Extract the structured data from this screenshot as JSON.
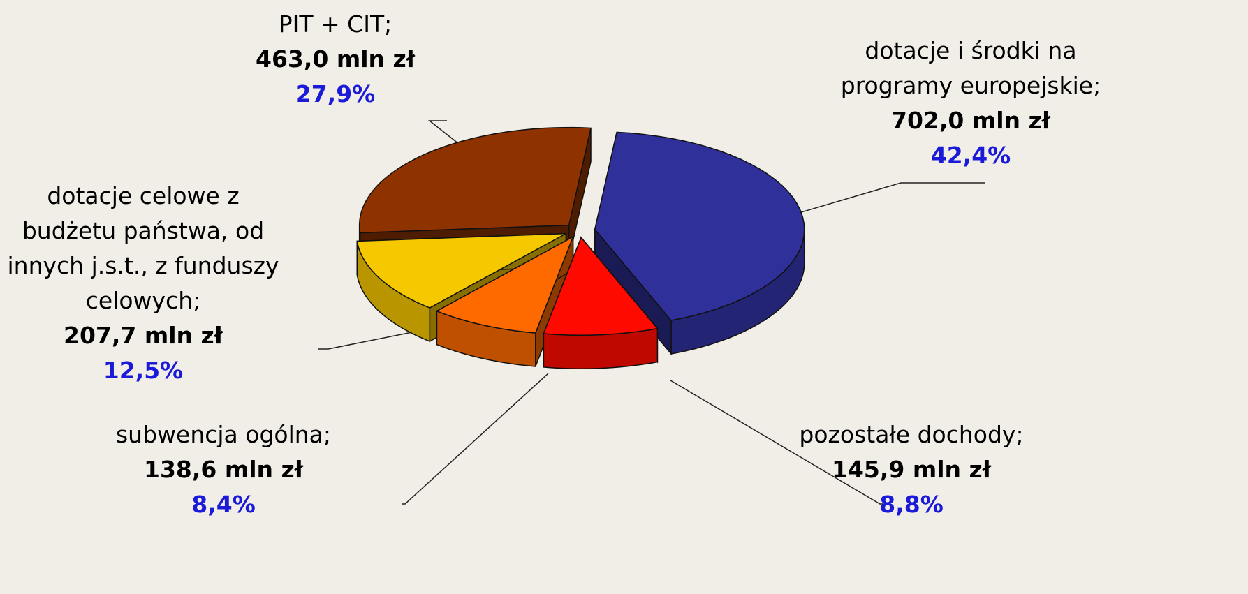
{
  "chart_data": {
    "type": "pie3d",
    "categories": [
      "dotacje i środki na programy europejskie;",
      "pozostałe dochody;",
      "subwencja ogólna;",
      "dotacje celowe z budżetu państwa, od innych j.s.t., z funduszy celowych;",
      "PIT + CIT;"
    ],
    "values": [
      702.0,
      145.9,
      138.6,
      207.7,
      463.0
    ],
    "value_labels": [
      "702,0 mln zł",
      "145,9 mln zł",
      "138,6 mln zł",
      "207,7 mln zł",
      "463,0 mln zł"
    ],
    "shares": [
      42.4,
      8.8,
      8.4,
      12.5,
      27.9
    ],
    "share_labels": [
      "42,4%",
      "8,8%",
      "8,4%",
      "12,5%",
      "27,9%"
    ],
    "colors": [
      "#30309a",
      "#ff0a00",
      "#ff6a00",
      "#f6c800",
      "#8e3200"
    ]
  }
}
